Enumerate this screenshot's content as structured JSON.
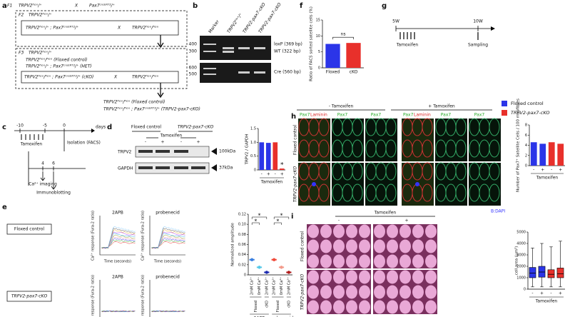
{
  "labels": {
    "a": "a",
    "b": "b",
    "c": "c",
    "d": "d",
    "e": "e",
    "f": "f",
    "g": "g",
    "h": "h",
    "i": "i"
  },
  "panel_a": {
    "f1": "F1",
    "f2": "F2",
    "f3": "F3",
    "cross": "X",
    "f1_left": "TRPV2ᶠˡᵒˣ/⁺",
    "f1_right": "Pax7ᶜʳᵉᴱᴿᵀ²/⁺",
    "f2_top": "TRPV2ᶠˡᵒˣ/⁺",
    "f2_left": "TRPV2ᶠˡᵒˣ/⁺ ; Pax7ᶜʳᵉᴱᴿᵀ²/⁺",
    "f2_right": "TRPV2ᶠˡᵒˣ/ᶠˡᵒˣ",
    "f3_top": "TRPV2ᶠˡᵒˣ/⁺",
    "f3_lines": [
      "TRPV2ᶠˡᵒˣ/ᶠˡᵒˣ (Floxed control)",
      "TRPV2ᶠˡᵒˣ/⁺ ; Pax7ᶜʳᵉᴱᴿᵀ²/⁺ (HET)"
    ],
    "f3_left": "TRPV2ᶠˡᵒˣ/ᶠˡᵒˣ ; Pax7ᶜʳᵉᴱᴿᵀ²/⁺ (cKO)",
    "f3_right": "TRPV2ᶠˡᵒˣ/ᶠˡᵒˣ",
    "result": [
      "TRPV2ᶠˡᵒˣ/ᶠˡᵒˣ (Floxed control)",
      "TRPV2ᶠˡᵒˣ/ᶠˡᵒˣ ; Pax7ᶜʳᵉᴱᴿᵀ²/⁺ (TRPV2-pax7-cKO)"
    ]
  },
  "panel_b": {
    "lanes": [
      "Marker",
      "TRPV2ᶠˡᵒˣ/⁺",
      "TRPV2-pax7-cKO",
      "TRPV2-pax7-cKO"
    ],
    "sizes_top": [
      "400",
      "300"
    ],
    "sizes_bottom": [
      "600",
      "500"
    ],
    "bands": [
      "loxP (369 bp)",
      "WT (322 bp)",
      "Cre (560 bp)"
    ]
  },
  "panel_c": {
    "unit": "days",
    "ticks": [
      "-10",
      "-5",
      "0"
    ],
    "tamoxifen": "Tamoxifen",
    "isolation": "Isolation (FACS)",
    "ticks2": [
      "4",
      "6"
    ],
    "imaging": "Ca²⁺ imaging",
    "blot": "Immunoblotting"
  },
  "panel_d": {
    "groups": [
      "Floxed control",
      "TRPV2-pax7-cKO"
    ],
    "tamoxifen": "Tamoxifen",
    "signs": [
      "-",
      "+",
      "-",
      "+"
    ],
    "proteins": [
      "TRPV2",
      "GAPDH"
    ],
    "sizes": [
      "100kDa",
      "37kDa"
    ]
  },
  "panel_e": {
    "rows": [
      "Floxed control",
      "TRPV2-pax7-cKO"
    ],
    "drugs": [
      "2APB",
      "probenecid"
    ],
    "ylabel": "Ca²⁺ response (Fura-2 ratio)",
    "xlabel": "Time (seconds)"
  },
  "panel_g": {
    "start": "5W",
    "end": "10W",
    "tamoxifen": "Tamoxifen",
    "sampling": "Sampling"
  },
  "panel_h": {
    "conditions": [
      "- Tamoxifen",
      "+ Tamoxifen"
    ],
    "legend": [
      {
        "name": "Floxed control",
        "color": "#2b35e8"
      },
      {
        "name": "TRPV2-pax7-cKO",
        "color": "#e8302b"
      }
    ],
    "stains": [
      "Pax7",
      "Laminin"
    ],
    "rows": [
      "Floxed control",
      "TRPV2-pax7-cKO"
    ],
    "dapi": "B:DAPI"
  },
  "panel_i": {
    "tamoxifen": "Tamoxifen",
    "signs": [
      "-",
      "+"
    ],
    "rows": [
      "Floxed control",
      "TRPV2-pax7-cKO"
    ]
  },
  "chart_data": [
    {
      "type": "bar",
      "ylabel": "TRPV2 / GAPDH",
      "xlabel": "Tamoxifen",
      "categories": [
        "-",
        "+",
        "-",
        "+"
      ],
      "values": [
        1,
        0.98,
        1,
        0.05
      ],
      "colors": [
        "#2b35e8",
        "#2b35e8",
        "#e8302b",
        "#e8302b"
      ],
      "ylim": [
        0,
        1.5
      ],
      "yticks": [
        0,
        0.5,
        {
          "value": 1,
          "label": "1.0"
        },
        1.5
      ],
      "annotation": "*"
    },
    {
      "type": "strip",
      "ylabel": "Normalized amplitude",
      "categories": [
        "2mM Ca²⁺",
        "0mM Ca²⁺",
        "2mM Ca²⁺",
        "2mM Ca²⁺",
        "0mM Ca²⁺",
        "2mM Ca²⁺"
      ],
      "subgroups": [
        "Floxed",
        "cKO",
        "Floxed",
        "cKO"
      ],
      "groups": [
        "2APB",
        "probenecid"
      ],
      "values": [
        0.03,
        0.015,
        0.005,
        0.03,
        0.015,
        0.005
      ],
      "colors": [
        "#3a7fe0",
        "#55c8e8",
        "#1c2ab0",
        "#f04a3a",
        "#f39a8a",
        "#b01c1c"
      ],
      "ylim": [
        0,
        0.12
      ],
      "yticks": [
        0,
        0.02,
        0.04,
        0.06,
        0.08,
        {
          "value": 0.1,
          "label": "0.10"
        },
        0.12
      ],
      "annotation": "*"
    },
    {
      "type": "bar",
      "ylabel": "Ratio of FACS sorted satellite cells (%)",
      "categories": [
        "Floxed",
        "cKO"
      ],
      "values": [
        7.5,
        7.8
      ],
      "colors": [
        "#2b35e8",
        "#e8302b"
      ],
      "ylim": [
        0,
        15
      ],
      "yticks": [
        0,
        5,
        10,
        15
      ],
      "annotation": "ns"
    },
    {
      "type": "bar",
      "ylabel": "Number of Pax7⁺ Satellite Cells / 100 myofibres",
      "xlabel": "Tamoxifen",
      "categories": [
        "-",
        "+",
        "-",
        "+"
      ],
      "values": [
        4.6,
        4.3,
        4.6,
        4.3
      ],
      "colors": [
        "#2b35e8",
        "#2b35e8",
        "#e8302b",
        "#e8302b"
      ],
      "ylim": [
        0,
        8
      ],
      "yticks": [
        0,
        2,
        4,
        6,
        8
      ]
    },
    {
      "type": "box",
      "ylabel": "cell area (μm²)",
      "xlabel": "Tamoxifen",
      "categories": [
        "-",
        "+",
        "-",
        "+"
      ],
      "boxes": [
        {
          "whislo": 200,
          "q1": 1000,
          "med": 1400,
          "q3": 1900,
          "whishi": 3600
        },
        {
          "whislo": 200,
          "q1": 1050,
          "med": 1500,
          "q3": 2000,
          "whishi": 4000
        },
        {
          "whislo": 200,
          "q1": 1000,
          "med": 1300,
          "q3": 1700,
          "whishi": 3700
        },
        {
          "whislo": 200,
          "q1": 1000,
          "med": 1350,
          "q3": 1850,
          "whishi": 4200
        }
      ],
      "colors": [
        "#2b35e8",
        "#2b35e8",
        "#e8302b",
        "#e8302b"
      ],
      "ylim": [
        0,
        5000
      ],
      "yticks": [
        0,
        1000,
        2000,
        3000,
        4000,
        5000
      ]
    }
  ]
}
